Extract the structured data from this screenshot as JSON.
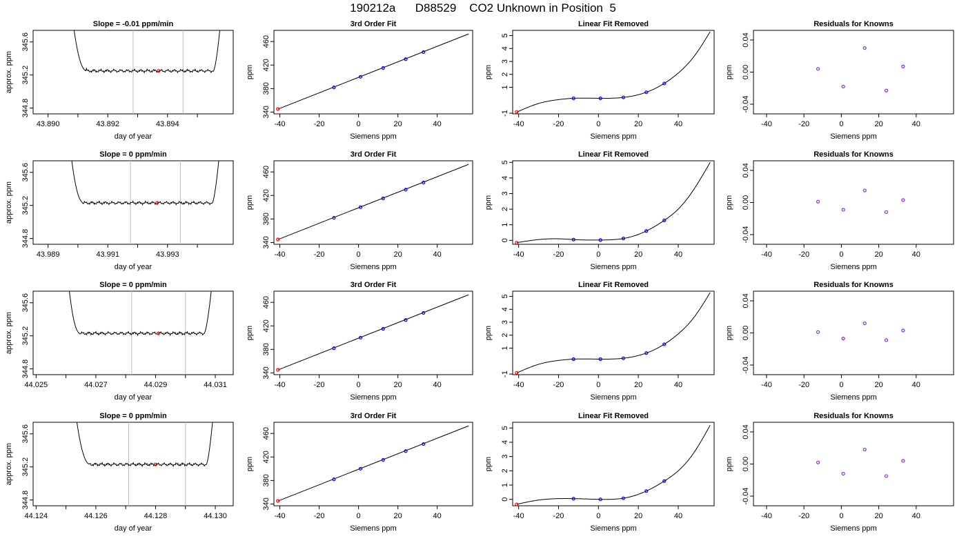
{
  "figure_title": "190212a      D88529    CO2 Unknown in Position  5",
  "colors": {
    "line": "#000000",
    "grid_vline": "#bbbbbb",
    "red_point": "#ff0000",
    "blue_point": "#0000ff",
    "purple_point": "#8a2be2"
  },
  "panel_titles": {
    "fit": "3rd Order Fit",
    "linear_removed": "Linear Fit Removed",
    "residuals": "Residuals for Knowns"
  },
  "axis_labels": {
    "time_x": "day of year",
    "time_y": "approx. ppm",
    "siemens_x": "Siemens ppm",
    "ppm_y": "ppm"
  },
  "chart_data": [
    {
      "type": "line",
      "panel": "time-series",
      "row": 1,
      "title": "Slope =  -0.01  ppm/min",
      "xlim": [
        43.8895,
        43.8962
      ],
      "ylim": [
        344.73,
        345.74
      ],
      "xticks": [
        "43.890",
        "43.892",
        "43.894"
      ],
      "xtick_values": [
        43.89,
        43.892,
        43.894
      ],
      "yticks": [
        "344.8",
        "345.2",
        "345.6"
      ],
      "ytick_values": [
        344.8,
        345.2,
        345.6
      ],
      "t_start": 43.89085,
      "t_end": 43.89578,
      "t_rise_end": 43.8913,
      "t_fall_start": 43.89554,
      "baseline": 345.25,
      "vlines": [
        43.89285,
        43.89452
      ],
      "marker": {
        "x": 43.8937,
        "y": 345.25
      }
    },
    {
      "type": "line",
      "panel": "time-series",
      "row": 2,
      "title": "Slope =  0  ppm/min",
      "xlim": [
        43.9885,
        43.9952
      ],
      "ylim": [
        344.73,
        345.74
      ],
      "xticks": [
        "43.989",
        "43.991",
        "43.993"
      ],
      "xtick_values": [
        43.989,
        43.991,
        43.993
      ],
      "yticks": [
        "344.8",
        "345.2",
        "345.6"
      ],
      "ytick_values": [
        344.8,
        345.2,
        345.6
      ],
      "t_start": 43.98978,
      "t_end": 43.99474,
      "t_rise_end": 43.9902,
      "t_fall_start": 43.9945,
      "baseline": 345.23,
      "vlines": [
        43.99176,
        43.99343
      ],
      "marker": {
        "x": 43.99265,
        "y": 345.23
      }
    },
    {
      "type": "line",
      "panel": "time-series",
      "row": 3,
      "title": "Slope =  0  ppm/min",
      "xlim": [
        44.0249,
        44.0316
      ],
      "ylim": [
        344.73,
        345.74
      ],
      "xticks": [
        "44.025",
        "44.027",
        "44.029",
        "44.031"
      ],
      "xtick_values": [
        44.025,
        44.027,
        44.029,
        44.031
      ],
      "yticks": [
        "344.8",
        "345.2",
        "345.6"
      ],
      "ytick_values": [
        344.8,
        345.2,
        345.6
      ],
      "t_start": 44.0261,
      "t_end": 44.03089,
      "t_rise_end": 44.02648,
      "t_fall_start": 44.03063,
      "baseline": 345.23,
      "vlines": [
        44.0282,
        44.03
      ],
      "marker": {
        "x": 44.0291,
        "y": 345.23
      }
    },
    {
      "type": "line",
      "panel": "time-series",
      "row": 4,
      "title": "Slope =  0  ppm/min",
      "xlim": [
        44.1239,
        44.1306
      ],
      "ylim": [
        344.73,
        345.74
      ],
      "xticks": [
        "44.124",
        "44.126",
        "44.128",
        "44.130"
      ],
      "xtick_values": [
        44.124,
        44.126,
        44.128,
        44.13
      ],
      "yticks": [
        "344.8",
        "345.2",
        "345.6"
      ],
      "ytick_values": [
        344.8,
        345.2,
        345.6
      ],
      "t_start": 44.12535,
      "t_end": 44.12993,
      "t_rise_end": 44.12582,
      "t_fall_start": 44.1297,
      "baseline": 345.23,
      "vlines": [
        44.1271,
        44.129
      ],
      "marker": {
        "x": 44.128,
        "y": 345.23
      }
    },
    {
      "type": "scatter",
      "panel": "fit",
      "row": 1,
      "title": "3rd Order Fit",
      "xlabel": "Siemens ppm",
      "ylabel": "ppm",
      "xlim": [
        -43,
        58
      ],
      "ylim": [
        337,
        479
      ],
      "xticks": [
        "-40",
        "-20",
        "0",
        "20",
        "40"
      ],
      "xtick_values": [
        -40,
        -20,
        0,
        20,
        40
      ],
      "yticks": [
        "340",
        "380",
        "420",
        "460"
      ],
      "ytick_values": [
        340,
        380,
        420,
        460
      ],
      "line": {
        "x": [
          -41,
          56
        ],
        "y": [
          345.0,
          473.0
        ]
      },
      "points_blue": {
        "x": [
          -12.5,
          1,
          12.5,
          24,
          33
        ],
        "y": [
          382,
          400,
          415,
          430,
          442
        ]
      },
      "points_red": {
        "x": [
          -41
        ],
        "y": [
          345.2
        ]
      }
    },
    {
      "type": "scatter",
      "panel": "fit",
      "row": 2,
      "title": "3rd Order Fit",
      "xlabel": "Siemens ppm",
      "ylabel": "ppm",
      "xlim": [
        -43,
        58
      ],
      "ylim": [
        337,
        479
      ],
      "xticks": [
        "-40",
        "-20",
        "0",
        "20",
        "40"
      ],
      "xtick_values": [
        -40,
        -20,
        0,
        20,
        40
      ],
      "yticks": [
        "340",
        "380",
        "420",
        "460"
      ],
      "ytick_values": [
        340,
        380,
        420,
        460
      ],
      "line": {
        "x": [
          -41,
          56
        ],
        "y": [
          345.0,
          473.0
        ]
      },
      "points_blue": {
        "x": [
          -12.5,
          1,
          12.5,
          24,
          33
        ],
        "y": [
          382,
          400,
          415,
          430,
          442
        ]
      },
      "points_red": {
        "x": [
          -41
        ],
        "y": [
          345.2
        ]
      }
    },
    {
      "type": "scatter",
      "panel": "fit",
      "row": 3,
      "title": "3rd Order Fit",
      "xlabel": "Siemens ppm",
      "ylabel": "ppm",
      "xlim": [
        -43,
        58
      ],
      "ylim": [
        337,
        479
      ],
      "xticks": [
        "-40",
        "-20",
        "0",
        "20",
        "40"
      ],
      "xtick_values": [
        -40,
        -20,
        0,
        20,
        40
      ],
      "yticks": [
        "340",
        "380",
        "420",
        "460"
      ],
      "ytick_values": [
        340,
        380,
        420,
        460
      ],
      "line": {
        "x": [
          -41,
          56
        ],
        "y": [
          345.0,
          473.0
        ]
      },
      "points_blue": {
        "x": [
          -12.5,
          1,
          12.5,
          24,
          33
        ],
        "y": [
          382,
          400,
          415,
          430,
          442
        ]
      },
      "points_red": {
        "x": [
          -41
        ],
        "y": [
          345.2
        ]
      }
    },
    {
      "type": "scatter",
      "panel": "fit",
      "row": 4,
      "title": "3rd Order Fit",
      "xlabel": "Siemens ppm",
      "ylabel": "ppm",
      "xlim": [
        -43,
        58
      ],
      "ylim": [
        337,
        479
      ],
      "xticks": [
        "-40",
        "-20",
        "0",
        "20",
        "40"
      ],
      "xtick_values": [
        -40,
        -20,
        0,
        20,
        40
      ],
      "yticks": [
        "340",
        "380",
        "420",
        "460"
      ],
      "ytick_values": [
        340,
        380,
        420,
        460
      ],
      "line": {
        "x": [
          -41,
          56
        ],
        "y": [
          345.0,
          473.0
        ]
      },
      "points_blue": {
        "x": [
          -12.5,
          1,
          12.5,
          24,
          33
        ],
        "y": [
          382,
          400,
          415,
          430,
          442
        ]
      },
      "points_red": {
        "x": [
          -41
        ],
        "y": [
          345.2
        ]
      }
    },
    {
      "type": "scatter",
      "panel": "linear-removed",
      "row": 1,
      "title": "Linear Fit Removed",
      "xlabel": "Siemens ppm",
      "ylabel": "ppm",
      "xlim": [
        -43,
        58
      ],
      "ylim": [
        -1.05,
        5.4
      ],
      "xticks": [
        "-40",
        "-20",
        "0",
        "20",
        "40"
      ],
      "xtick_values": [
        -40,
        -20,
        0,
        20,
        40
      ],
      "yticks": [
        "-1",
        "1",
        "2",
        "3",
        "4",
        "5"
      ],
      "ytick_values": [
        -1,
        1,
        2,
        3,
        4,
        5
      ],
      "curve": {
        "x": [
          -41,
          -30,
          -20,
          -12.5,
          1,
          12.5,
          24,
          33,
          40,
          48,
          56
        ],
        "y": [
          -0.92,
          -0.25,
          0.05,
          0.15,
          0.15,
          0.22,
          0.62,
          1.3,
          2.1,
          3.4,
          5.3
        ]
      },
      "points_blue": {
        "x": [
          -12.5,
          1,
          12.5,
          24,
          33
        ],
        "y": [
          0.15,
          0.15,
          0.22,
          0.62,
          1.3
        ]
      },
      "points_red": {
        "x": [
          -41
        ],
        "y": [
          -0.9
        ]
      }
    },
    {
      "type": "scatter",
      "panel": "linear-removed",
      "row": 2,
      "title": "Linear Fit Removed",
      "xlabel": "Siemens ppm",
      "ylabel": "ppm",
      "xlim": [
        -43,
        58
      ],
      "ylim": [
        -0.25,
        5.1
      ],
      "xticks": [
        "-40",
        "-20",
        "0",
        "20",
        "40"
      ],
      "xtick_values": [
        -40,
        -20,
        0,
        20,
        40
      ],
      "yticks": [
        "0",
        "1",
        "2",
        "3",
        "4",
        "5"
      ],
      "ytick_values": [
        0,
        1,
        2,
        3,
        4,
        5
      ],
      "curve": {
        "x": [
          -41,
          -30,
          -20,
          -12.5,
          1,
          12.5,
          24,
          33,
          40,
          48,
          56
        ],
        "y": [
          -0.15,
          0.05,
          0.1,
          0.05,
          0.02,
          0.12,
          0.6,
          1.28,
          2.0,
          3.3,
          5.0
        ]
      },
      "points_blue": {
        "x": [
          -12.5,
          1,
          12.5,
          24,
          33
        ],
        "y": [
          0.05,
          0.02,
          0.12,
          0.6,
          1.28
        ]
      },
      "points_red": {
        "x": [
          -41
        ],
        "y": [
          -0.15
        ]
      }
    },
    {
      "type": "scatter",
      "panel": "linear-removed",
      "row": 3,
      "title": "Linear Fit Removed",
      "xlabel": "Siemens ppm",
      "ylabel": "ppm",
      "xlim": [
        -43,
        58
      ],
      "ylim": [
        -1.05,
        5.4
      ],
      "xticks": [
        "-40",
        "-20",
        "0",
        "20",
        "40"
      ],
      "xtick_values": [
        -40,
        -20,
        0,
        20,
        40
      ],
      "yticks": [
        "-1",
        "1",
        "2",
        "3",
        "4",
        "5"
      ],
      "ytick_values": [
        -1,
        1,
        2,
        3,
        4,
        5
      ],
      "curve": {
        "x": [
          -41,
          -30,
          -20,
          -12.5,
          1,
          12.5,
          24,
          33,
          40,
          48,
          56
        ],
        "y": [
          -0.92,
          -0.25,
          0.05,
          0.15,
          0.15,
          0.22,
          0.62,
          1.3,
          2.1,
          3.4,
          5.3
        ]
      },
      "points_blue": {
        "x": [
          -12.5,
          1,
          12.5,
          24,
          33
        ],
        "y": [
          0.15,
          0.15,
          0.22,
          0.62,
          1.3
        ]
      },
      "points_red": {
        "x": [
          -41
        ],
        "y": [
          -0.9
        ]
      }
    },
    {
      "type": "scatter",
      "panel": "linear-removed",
      "row": 4,
      "title": "Linear Fit Removed",
      "xlabel": "Siemens ppm",
      "ylabel": "ppm",
      "xlim": [
        -43,
        58
      ],
      "ylim": [
        -0.45,
        5.4
      ],
      "xticks": [
        "-40",
        "-20",
        "0",
        "20",
        "40"
      ],
      "xtick_values": [
        -40,
        -20,
        0,
        20,
        40
      ],
      "yticks": [
        "0",
        "1",
        "2",
        "3",
        "4",
        "5"
      ],
      "ytick_values": [
        0,
        1,
        2,
        3,
        4,
        5
      ],
      "curve": {
        "x": [
          -41,
          -30,
          -20,
          -12.5,
          1,
          12.5,
          24,
          33,
          40,
          48,
          56
        ],
        "y": [
          -0.35,
          -0.05,
          0.05,
          0.05,
          0.0,
          0.08,
          0.58,
          1.28,
          2.0,
          3.3,
          5.2
        ]
      },
      "points_blue": {
        "x": [
          -12.5,
          1,
          12.5,
          24,
          33
        ],
        "y": [
          0.05,
          0.0,
          0.08,
          0.58,
          1.28
        ]
      },
      "points_red": {
        "x": [
          -41
        ],
        "y": [
          -0.35
        ]
      }
    },
    {
      "type": "scatter",
      "panel": "residuals",
      "row": 1,
      "title": "Residuals for Knowns",
      "xlabel": "Siemens ppm",
      "ylabel": "ppm",
      "xlim": [
        -47,
        60
      ],
      "ylim": [
        -0.052,
        0.052
      ],
      "xticks": [
        "-40",
        "-20",
        "0",
        "20",
        "40"
      ],
      "xtick_values": [
        -40,
        -20,
        0,
        20,
        40
      ],
      "yticks": [
        "-0.04",
        "0.00",
        "0.04"
      ],
      "ytick_values": [
        -0.04,
        0.0,
        0.04
      ],
      "points": {
        "x": [
          -12.5,
          1,
          12.5,
          24,
          33
        ],
        "y": [
          0.004,
          -0.018,
          0.03,
          -0.023,
          0.007
        ]
      }
    },
    {
      "type": "scatter",
      "panel": "residuals",
      "row": 2,
      "title": "Residuals for Knowns",
      "xlabel": "Siemens ppm",
      "ylabel": "ppm",
      "xlim": [
        -47,
        60
      ],
      "ylim": [
        -0.052,
        0.052
      ],
      "xticks": [
        "-40",
        "-20",
        "0",
        "20",
        "40"
      ],
      "xtick_values": [
        -40,
        -20,
        0,
        20,
        40
      ],
      "yticks": [
        "-0.04",
        "0.00",
        "0.04"
      ],
      "ytick_values": [
        -0.04,
        0.0,
        0.04
      ],
      "points": {
        "x": [
          -12.5,
          1,
          12.5,
          24,
          33
        ],
        "y": [
          0.001,
          -0.009,
          0.015,
          -0.012,
          0.003
        ]
      }
    },
    {
      "type": "scatter",
      "panel": "residuals",
      "row": 3,
      "title": "Residuals for Knowns",
      "xlabel": "Siemens ppm",
      "ylabel": "ppm",
      "xlim": [
        -47,
        60
      ],
      "ylim": [
        -0.052,
        0.052
      ],
      "xticks": [
        "-40",
        "-20",
        "0",
        "20",
        "40"
      ],
      "xtick_values": [
        -40,
        -20,
        0,
        20,
        40
      ],
      "yticks": [
        "-0.04",
        "0.00",
        "0.04"
      ],
      "ytick_values": [
        -0.04,
        0.0,
        0.04
      ],
      "points": {
        "x": [
          -12.5,
          1,
          12.5,
          24,
          33
        ],
        "y": [
          0.001,
          -0.007,
          0.012,
          -0.009,
          0.003
        ]
      }
    },
    {
      "type": "scatter",
      "panel": "residuals",
      "row": 4,
      "title": "Residuals for Knowns",
      "xlabel": "Siemens ppm",
      "ylabel": "ppm",
      "xlim": [
        -47,
        60
      ],
      "ylim": [
        -0.052,
        0.052
      ],
      "xticks": [
        "-40",
        "-20",
        "0",
        "20",
        "40"
      ],
      "xtick_values": [
        -40,
        -20,
        0,
        20,
        40
      ],
      "yticks": [
        "-0.04",
        "0.00",
        "0.04"
      ],
      "ytick_values": [
        -0.04,
        0.0,
        0.04
      ],
      "points": {
        "x": [
          -12.5,
          1,
          12.5,
          24,
          33
        ],
        "y": [
          0.002,
          -0.012,
          0.018,
          -0.015,
          0.004
        ]
      }
    }
  ]
}
